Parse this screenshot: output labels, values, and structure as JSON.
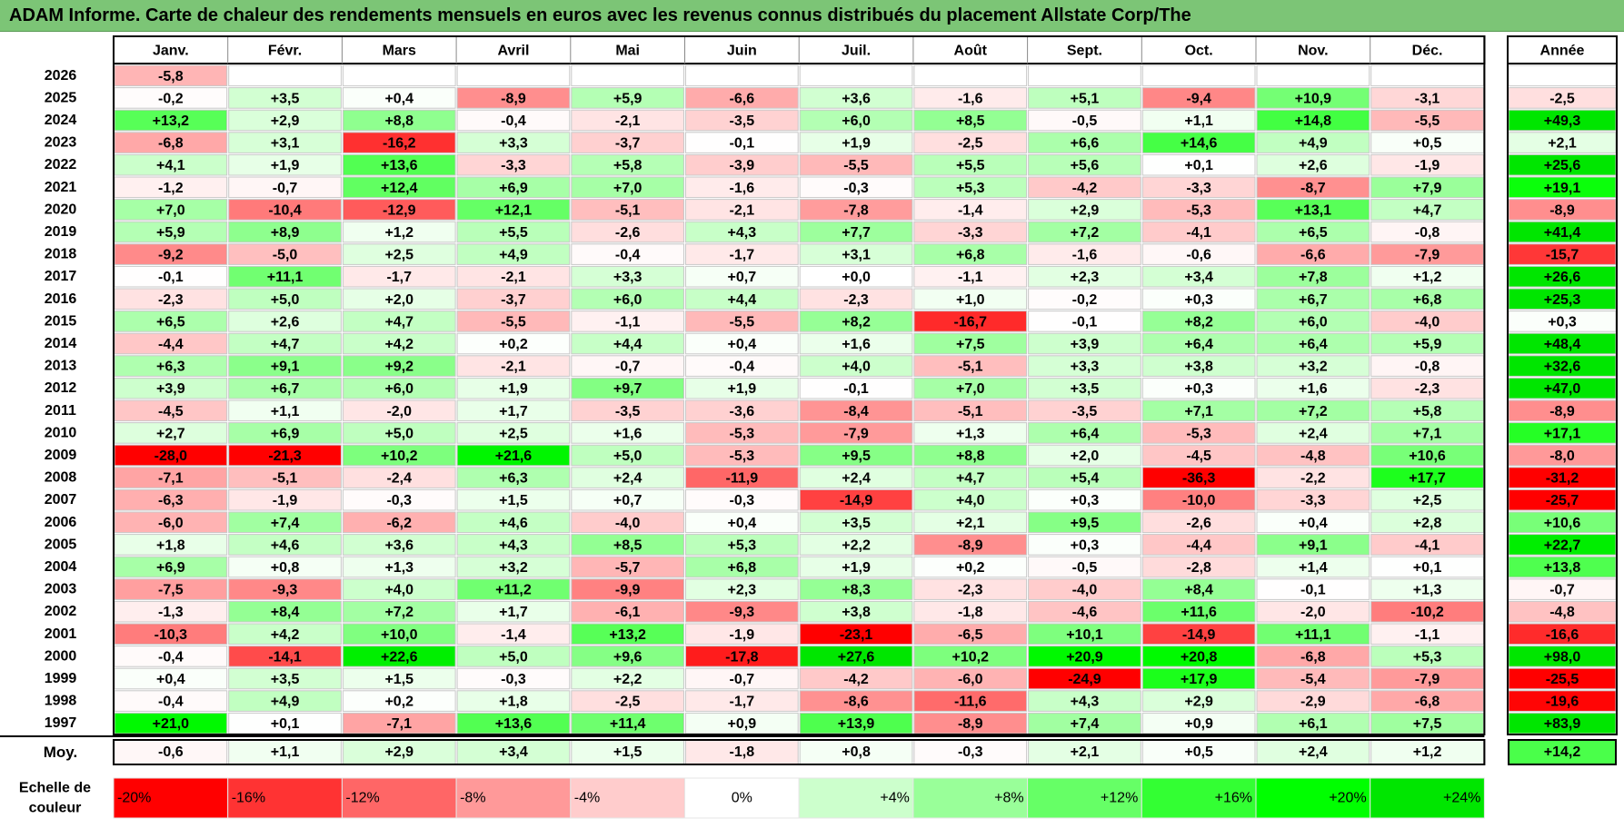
{
  "title": "ADAM Informe. Carte de chaleur des rendements mensuels en euros avec les revenus connus distribués du placement Allstate Corp/The",
  "chart_data": {
    "type": "heatmap",
    "columns": [
      "Janv.",
      "Févr.",
      "Mars",
      "Avril",
      "Mai",
      "Juin",
      "Juil.",
      "Août",
      "Sept.",
      "Oct.",
      "Nov.",
      "Déc."
    ],
    "year_column_label": "Année",
    "rows": [
      {
        "year": "2026",
        "months": [
          "-5,8",
          null,
          null,
          null,
          null,
          null,
          null,
          null,
          null,
          null,
          null,
          null
        ],
        "annual": null
      },
      {
        "year": "2025",
        "months": [
          "-0,2",
          "+3,5",
          "+0,4",
          "-8,9",
          "+5,9",
          "-6,6",
          "+3,6",
          "-1,6",
          "+5,1",
          "-9,4",
          "+10,9",
          "-3,1"
        ],
        "annual": "-2,5"
      },
      {
        "year": "2024",
        "months": [
          "+13,2",
          "+2,9",
          "+8,8",
          "-0,4",
          "-2,1",
          "-3,5",
          "+6,0",
          "+8,5",
          "-0,5",
          "+1,1",
          "+14,8",
          "-5,5"
        ],
        "annual": "+49,3"
      },
      {
        "year": "2023",
        "months": [
          "-6,8",
          "+3,1",
          "-16,2",
          "+3,3",
          "-3,7",
          "-0,1",
          "+1,9",
          "-2,5",
          "+6,6",
          "+14,6",
          "+4,9",
          "+0,5"
        ],
        "annual": "+2,1"
      },
      {
        "year": "2022",
        "months": [
          "+4,1",
          "+1,9",
          "+13,6",
          "-3,3",
          "+5,8",
          "-3,9",
          "-5,5",
          "+5,5",
          "+5,6",
          "+0,1",
          "+2,6",
          "-1,9"
        ],
        "annual": "+25,6"
      },
      {
        "year": "2021",
        "months": [
          "-1,2",
          "-0,7",
          "+12,4",
          "+6,9",
          "+7,0",
          "-1,6",
          "-0,3",
          "+5,3",
          "-4,2",
          "-3,3",
          "-8,7",
          "+7,9"
        ],
        "annual": "+19,1"
      },
      {
        "year": "2020",
        "months": [
          "+7,0",
          "-10,4",
          "-12,9",
          "+12,1",
          "-5,1",
          "-2,1",
          "-7,8",
          "-1,4",
          "+2,9",
          "-5,3",
          "+13,1",
          "+4,7"
        ],
        "annual": "-8,9"
      },
      {
        "year": "2019",
        "months": [
          "+5,9",
          "+8,9",
          "+1,2",
          "+5,5",
          "-2,6",
          "+4,3",
          "+7,7",
          "-3,3",
          "+7,2",
          "-4,1",
          "+6,5",
          "-0,8"
        ],
        "annual": "+41,4"
      },
      {
        "year": "2018",
        "months": [
          "-9,2",
          "-5,0",
          "+2,5",
          "+4,9",
          "-0,4",
          "-1,7",
          "+3,1",
          "+6,8",
          "-1,6",
          "-0,6",
          "-6,6",
          "-7,9"
        ],
        "annual": "-15,7"
      },
      {
        "year": "2017",
        "months": [
          "-0,1",
          "+11,1",
          "-1,7",
          "-2,1",
          "+3,3",
          "+0,7",
          "+0,0",
          "-1,1",
          "+2,3",
          "+3,4",
          "+7,8",
          "+1,2"
        ],
        "annual": "+26,6"
      },
      {
        "year": "2016",
        "months": [
          "-2,3",
          "+5,0",
          "+2,0",
          "-3,7",
          "+6,0",
          "+4,4",
          "-2,3",
          "+1,0",
          "-0,2",
          "+0,3",
          "+6,7",
          "+6,8"
        ],
        "annual": "+25,3"
      },
      {
        "year": "2015",
        "months": [
          "+6,5",
          "+2,6",
          "+4,7",
          "-5,5",
          "-1,1",
          "-5,5",
          "+8,2",
          "-16,7",
          "-0,1",
          "+8,2",
          "+6,0",
          "-4,0"
        ],
        "annual": "+0,3"
      },
      {
        "year": "2014",
        "months": [
          "-4,4",
          "+4,7",
          "+4,2",
          "+0,2",
          "+4,4",
          "+0,4",
          "+1,6",
          "+7,5",
          "+3,9",
          "+6,4",
          "+6,4",
          "+5,9"
        ],
        "annual": "+48,4"
      },
      {
        "year": "2013",
        "months": [
          "+6,3",
          "+9,1",
          "+9,2",
          "-2,1",
          "-0,7",
          "-0,4",
          "+4,0",
          "-5,1",
          "+3,3",
          "+3,8",
          "+3,2",
          "-0,8"
        ],
        "annual": "+32,6"
      },
      {
        "year": "2012",
        "months": [
          "+3,9",
          "+6,7",
          "+6,0",
          "+1,9",
          "+9,7",
          "+1,9",
          "-0,1",
          "+7,0",
          "+3,5",
          "+0,3",
          "+1,6",
          "-2,3"
        ],
        "annual": "+47,0"
      },
      {
        "year": "2011",
        "months": [
          "-4,5",
          "+1,1",
          "-2,0",
          "+1,7",
          "-3,5",
          "-3,6",
          "-8,4",
          "-5,1",
          "-3,5",
          "+7,1",
          "+7,2",
          "+5,8"
        ],
        "annual": "-8,9"
      },
      {
        "year": "2010",
        "months": [
          "+2,7",
          "+6,9",
          "+5,0",
          "+2,5",
          "+1,6",
          "-5,3",
          "-7,9",
          "+1,3",
          "+6,4",
          "-5,3",
          "+2,4",
          "+7,1"
        ],
        "annual": "+17,1"
      },
      {
        "year": "2009",
        "months": [
          "-28,0",
          "-21,3",
          "+10,2",
          "+21,6",
          "+5,0",
          "-5,3",
          "+9,5",
          "+8,8",
          "+2,0",
          "-4,5",
          "-4,8",
          "+10,6"
        ],
        "annual": "-8,0"
      },
      {
        "year": "2008",
        "months": [
          "-7,1",
          "-5,1",
          "-2,4",
          "+6,3",
          "+2,4",
          "-11,9",
          "+2,4",
          "+4,7",
          "+5,4",
          "-36,3",
          "-2,2",
          "+17,7"
        ],
        "annual": "-31,2"
      },
      {
        "year": "2007",
        "months": [
          "-6,3",
          "-1,9",
          "-0,3",
          "+1,5",
          "+0,7",
          "-0,3",
          "-14,9",
          "+4,0",
          "+0,3",
          "-10,0",
          "-3,3",
          "+2,5"
        ],
        "annual": "-25,7"
      },
      {
        "year": "2006",
        "months": [
          "-6,0",
          "+7,4",
          "-6,2",
          "+4,6",
          "-4,0",
          "+0,4",
          "+3,5",
          "+2,1",
          "+9,5",
          "-2,6",
          "+0,4",
          "+2,8"
        ],
        "annual": "+10,6"
      },
      {
        "year": "2005",
        "months": [
          "+1,8",
          "+4,6",
          "+3,6",
          "+4,3",
          "+8,5",
          "+5,3",
          "+2,2",
          "-8,9",
          "+0,3",
          "-4,4",
          "+9,1",
          "-4,1"
        ],
        "annual": "+22,7"
      },
      {
        "year": "2004",
        "months": [
          "+6,9",
          "+0,8",
          "+1,3",
          "+3,2",
          "-5,7",
          "+6,8",
          "+1,9",
          "+0,2",
          "-0,5",
          "-2,8",
          "+1,4",
          "+0,1"
        ],
        "annual": "+13,8"
      },
      {
        "year": "2003",
        "months": [
          "-7,5",
          "-9,3",
          "+4,0",
          "+11,2",
          "-9,9",
          "+2,3",
          "+8,3",
          "-2,3",
          "-4,0",
          "+8,4",
          "-0,1",
          "+1,3"
        ],
        "annual": "-0,7"
      },
      {
        "year": "2002",
        "months": [
          "-1,3",
          "+8,4",
          "+7,2",
          "+1,7",
          "-6,1",
          "-9,3",
          "+3,8",
          "-1,8",
          "-4,6",
          "+11,6",
          "-2,0",
          "-10,2"
        ],
        "annual": "-4,8"
      },
      {
        "year": "2001",
        "months": [
          "-10,3",
          "+4,2",
          "+10,0",
          "-1,4",
          "+13,2",
          "-1,9",
          "-23,1",
          "-6,5",
          "+10,1",
          "-14,9",
          "+11,1",
          "-1,1"
        ],
        "annual": "-16,6"
      },
      {
        "year": "2000",
        "months": [
          "-0,4",
          "-14,1",
          "+22,6",
          "+5,0",
          "+9,6",
          "-17,8",
          "+27,6",
          "+10,2",
          "+20,9",
          "+20,8",
          "-6,8",
          "+5,3"
        ],
        "annual": "+98,0"
      },
      {
        "year": "1999",
        "months": [
          "+0,4",
          "+3,5",
          "+1,5",
          "-0,3",
          "+2,2",
          "-0,7",
          "-4,2",
          "-6,0",
          "-24,9",
          "+17,9",
          "-5,4",
          "-7,9"
        ],
        "annual": "-25,5"
      },
      {
        "year": "1998",
        "months": [
          "-0,4",
          "+4,9",
          "+0,2",
          "+1,8",
          "-2,5",
          "-1,7",
          "-8,6",
          "-11,6",
          "+4,3",
          "+2,9",
          "-2,9",
          "-6,8"
        ],
        "annual": "-19,6"
      },
      {
        "year": "1997",
        "months": [
          "+21,0",
          "+0,1",
          "-7,1",
          "+13,6",
          "+11,4",
          "+0,9",
          "+13,9",
          "-8,9",
          "+7,4",
          "+0,9",
          "+6,1",
          "+7,5"
        ],
        "annual": "+83,9"
      }
    ],
    "average": {
      "label": "Moy.",
      "months": [
        "-0,6",
        "+1,1",
        "+2,9",
        "+3,4",
        "+1,5",
        "-1,8",
        "+0,8",
        "-0,3",
        "+2,1",
        "+0,5",
        "+2,4",
        "+1,2"
      ],
      "annual": "+14,2"
    },
    "scale": {
      "label_line1": "Echelle de",
      "label_line2": "couleur",
      "stops": [
        {
          "label": "-20%",
          "value": -20,
          "color": "#ff0000"
        },
        {
          "label": "-16%",
          "value": -16,
          "color": "#ff3333"
        },
        {
          "label": "-12%",
          "value": -12,
          "color": "#ff6666"
        },
        {
          "label": "-8%",
          "value": -8,
          "color": "#ff9999"
        },
        {
          "label": "-4%",
          "value": -4,
          "color": "#ffcccc"
        },
        {
          "label": "0%",
          "value": 0,
          "color": "#ffffff"
        },
        {
          "label": "+4%",
          "value": 4,
          "color": "#ccffcc"
        },
        {
          "label": "+8%",
          "value": 8,
          "color": "#99ff99"
        },
        {
          "label": "+12%",
          "value": 12,
          "color": "#66ff66"
        },
        {
          "label": "+16%",
          "value": 16,
          "color": "#33ff33"
        },
        {
          "label": "+20%",
          "value": 20,
          "color": "#00ff00"
        },
        {
          "label": "+24%",
          "value": 24,
          "color": "#00e600"
        }
      ]
    }
  }
}
